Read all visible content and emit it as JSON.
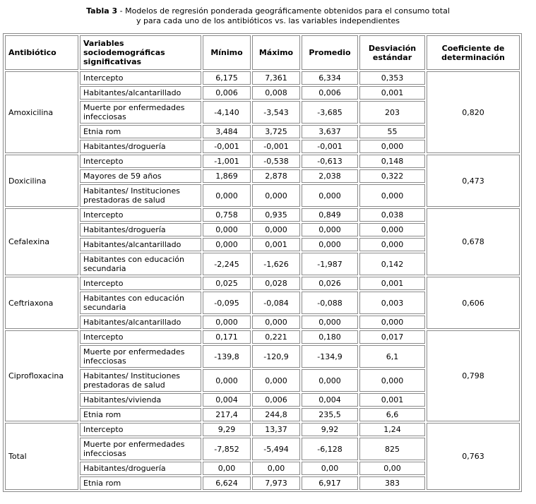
{
  "caption": {
    "label": "Tabla 3",
    "line1_rest": " - Modelos de regresión ponderada geográficamente obtenidos para el consumo total",
    "line2": "y para cada uno de los antibióticos vs. las variables independientes"
  },
  "table": {
    "headers": [
      "Antibiótico",
      "Variables sociodemográficas significativas",
      "Mínimo",
      "Máximo",
      "Promedio",
      "Desviación estándar",
      "Coeficiente de determinación"
    ],
    "groups": [
      {
        "antibiotic": "Amoxicilina",
        "coefficient": "0,820",
        "rows": [
          {
            "variable": "Intercepto",
            "min": "6,175",
            "max": "7,361",
            "avg": "6,334",
            "sd": "0,353"
          },
          {
            "variable": "Habitantes/alcantarillado",
            "min": "0,006",
            "max": "0,008",
            "avg": "0,006",
            "sd": "0,001"
          },
          {
            "variable": "Muerte por enfermedades infecciosas",
            "min": "-4,140",
            "max": "-3,543",
            "avg": "-3,685",
            "sd": "203"
          },
          {
            "variable": "Etnia rom",
            "min": "3,484",
            "max": "3,725",
            "avg": "3,637",
            "sd": "55"
          },
          {
            "variable": "Habitantes/droguería",
            "min": "-0,001",
            "max": "-0,001",
            "avg": "-0,001",
            "sd": "0,000"
          }
        ]
      },
      {
        "antibiotic": "Doxicilina",
        "coefficient": "0,473",
        "rows": [
          {
            "variable": "Intercepto",
            "min": "-1,001",
            "max": "-0,538",
            "avg": "-0,613",
            "sd": "0,148"
          },
          {
            "variable": "Mayores de 59 años",
            "min": "1,869",
            "max": "2,878",
            "avg": "2,038",
            "sd": "0,322"
          },
          {
            "variable": "Habitantes/ Instituciones prestadoras de salud",
            "min": "0,000",
            "max": "0,000",
            "avg": "0,000",
            "sd": "0,000"
          }
        ]
      },
      {
        "antibiotic": "Cefalexina",
        "coefficient": "0,678",
        "rows": [
          {
            "variable": "Intercepto",
            "min": "0,758",
            "max": "0,935",
            "avg": "0,849",
            "sd": "0,038"
          },
          {
            "variable": "Habitantes/droguería",
            "min": "0,000",
            "max": "0,000",
            "avg": "0,000",
            "sd": "0,000"
          },
          {
            "variable": "Habitantes/alcantarillado",
            "min": "0,000",
            "max": "0,001",
            "avg": "0,000",
            "sd": "0,000"
          },
          {
            "variable": "Habitantes con educación secundaria",
            "min": "-2,245",
            "max": "-1,626",
            "avg": "-1,987",
            "sd": "0,142"
          }
        ]
      },
      {
        "antibiotic": "Ceftriaxona",
        "coefficient": "0,606",
        "rows": [
          {
            "variable": "Intercepto",
            "min": "0,025",
            "max": "0,028",
            "avg": "0,026",
            "sd": "0,001"
          },
          {
            "variable": "Habitantes con educación secundaria",
            "min": "-0,095",
            "max": "-0,084",
            "avg": "-0,088",
            "sd": "0,003"
          },
          {
            "variable": "Habitantes/alcantarillado",
            "min": "0,000",
            "max": "0,000",
            "avg": "0,000",
            "sd": "0,000"
          }
        ]
      },
      {
        "antibiotic": "Ciprofloxacina",
        "coefficient": "0,798",
        "rows": [
          {
            "variable": "Intercepto",
            "min": "0,171",
            "max": "0,221",
            "avg": "0,180",
            "sd": "0,017"
          },
          {
            "variable": "Muerte por enfermedades infecciosas",
            "min": "-139,8",
            "max": "-120,9",
            "avg": "-134,9",
            "sd": "6,1"
          },
          {
            "variable": "Habitantes/ Instituciones prestadoras de salud",
            "min": "0,000",
            "max": "0,000",
            "avg": "0,000",
            "sd": "0,000"
          },
          {
            "variable": "Habitantes/vivienda",
            "min": "0,004",
            "max": "0,006",
            "avg": "0,004",
            "sd": "0,001"
          },
          {
            "variable": "Etnia rom",
            "min": "217,4",
            "max": "244,8",
            "avg": "235,5",
            "sd": "6,6"
          }
        ]
      },
      {
        "antibiotic": "Total",
        "coefficient": "0,763",
        "rows": [
          {
            "variable": "Intercepto",
            "min": "9,29",
            "max": "13,37",
            "avg": "9,92",
            "sd": "1,24"
          },
          {
            "variable": "Muerte por enfermedades infecciosas",
            "min": "-7,852",
            "max": "-5,494",
            "avg": "-6,128",
            "sd": "825"
          },
          {
            "variable": "Habitantes/droguería",
            "min": "0,00",
            "max": "0,00",
            "avg": "0,00",
            "sd": "0,00"
          },
          {
            "variable": "Etnia rom",
            "min": "6,624",
            "max": "7,973",
            "avg": "6,917",
            "sd": "383"
          }
        ]
      }
    ]
  }
}
